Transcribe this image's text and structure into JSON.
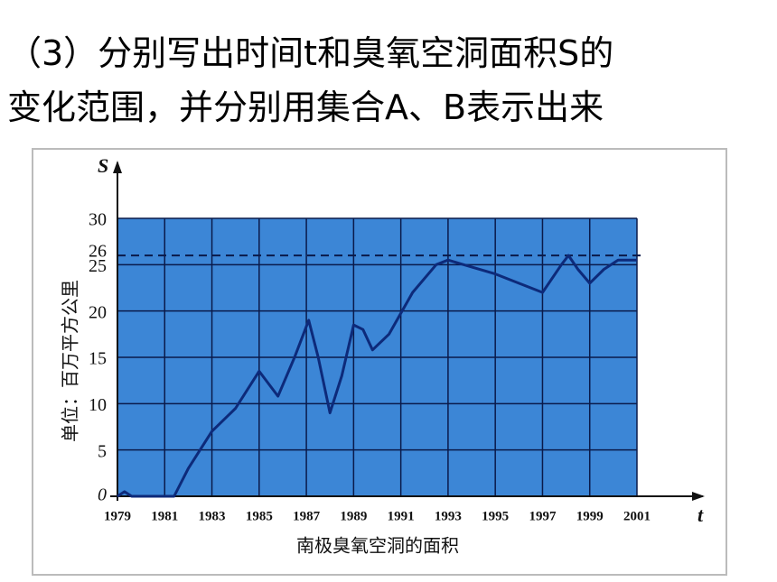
{
  "question": [
    "（3）分别写出时间t和臭氧空洞面积S的",
    "变化范围，并分别用集合A、B表示出来"
  ],
  "chart_data": {
    "type": "line",
    "title": "南极臭氧空洞的面积",
    "y_label": "单位：百万平方公里",
    "y_axis_name": "S",
    "x_axis_name": "t",
    "x": [
      1979,
      1979.3,
      1979.6,
      1981.4,
      1982,
      1983,
      1984,
      1985,
      1985.8,
      1986.5,
      1987.1,
      1987.5,
      1988,
      1988.5,
      1989,
      1989.4,
      1989.8,
      1990.5,
      1991.5,
      1992.5,
      1993,
      1995,
      1996,
      1997,
      1997.8,
      1998.1,
      1998.5,
      1999,
      1999.6,
      2000.2,
      2001
    ],
    "values": [
      0,
      0.5,
      0,
      0,
      3,
      7,
      9.5,
      13.5,
      10.8,
      15,
      19,
      15,
      9,
      13,
      18.5,
      18,
      15.8,
      17.5,
      22,
      25,
      25.5,
      24,
      23,
      22,
      25,
      26,
      24.5,
      23,
      24.5,
      25.5,
      25.5
    ],
    "color": "#0d2a7a",
    "background": "#3c86d6",
    "grid": true,
    "reference_line": 26,
    "xlim": [
      1979,
      2001
    ],
    "xticks": [
      1979,
      1981,
      1983,
      1985,
      1987,
      1989,
      1991,
      1993,
      1995,
      1997,
      1999,
      2001
    ],
    "ylim": [
      0,
      30
    ],
    "yticks": [
      0,
      5,
      10,
      15,
      20,
      25,
      26,
      30
    ]
  }
}
